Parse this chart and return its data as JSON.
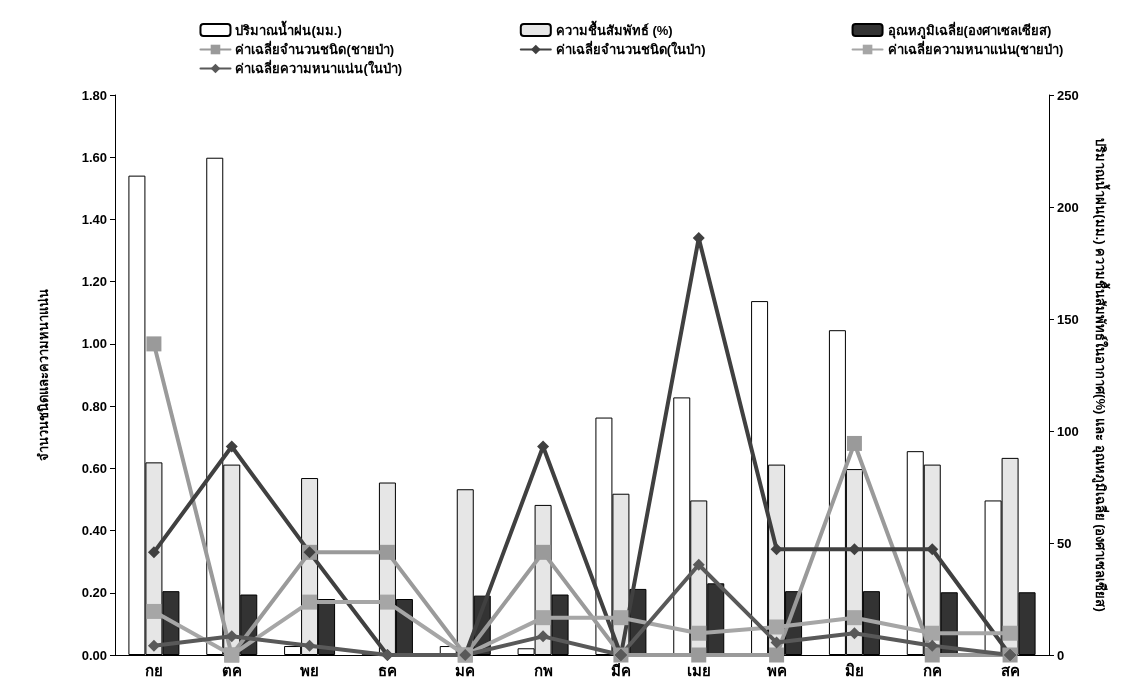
{
  "chart_data": {
    "type": "bar",
    "categories": [
      "กย",
      "ตค",
      "พย",
      "ธค",
      "มค",
      "กพ",
      "มีค",
      "เมย",
      "พค",
      "มิย",
      "กค",
      "สค"
    ],
    "ylabel": "จำนวนชนิดและความหนาแน่น",
    "y2label": "ปริมาณน้ำฝน(มม.) ความชื้นสัมพัทธ์ในอากาศ(%) และ อุณหภูมิเฉลี่ย (องศาเซลเซียส)",
    "ylim": [
      0,
      1.8
    ],
    "yticks": [
      {
        "value": 0,
        "label": "0.00"
      },
      {
        "value": 0.2,
        "label": "0.20"
      },
      {
        "value": 0.4,
        "label": "0.40"
      },
      {
        "value": 0.6,
        "label": "0.60"
      },
      {
        "value": 0.8,
        "label": "0.80"
      },
      {
        "value": 1,
        "label": "1.00"
      },
      {
        "value": 1.2,
        "label": "1.20"
      },
      {
        "value": 1.4,
        "label": "1.40"
      },
      {
        "value": 1.6,
        "label": "1.60"
      },
      {
        "value": 1.8,
        "label": "1.80"
      }
    ],
    "y2lim": [
      0,
      250
    ],
    "y2ticks": [
      0,
      50,
      100,
      150,
      200,
      250
    ],
    "grid": false,
    "legend": "top",
    "series": [
      {
        "name": "ปริมาณน้ำฝน(มม.)",
        "axis": "y2",
        "color": "#ffffff",
        "values": [
          214,
          222,
          4,
          0,
          4,
          3,
          106,
          115,
          158,
          145,
          91,
          69
        ]
      },
      {
        "name": "ความชื้นสัมพัทธ์ (%)",
        "axis": "y2",
        "color": "#e6e6e6",
        "values": [
          86,
          85,
          79,
          77,
          74,
          67,
          72,
          69,
          85,
          83,
          85,
          88
        ]
      },
      {
        "name": "อุณหภูมิเฉลี่ย(องศาเซลเซียส)",
        "axis": "y2",
        "color": "#333333",
        "values": [
          28.5,
          27,
          25,
          25,
          26.5,
          27,
          29.5,
          32,
          28.5,
          28.5,
          28,
          28
        ]
      },
      {
        "name": "ค่าเฉลี่ยจำนวนชนิด(ชายป่า)",
        "type": "line",
        "marker": "square",
        "color": "#9a9a9a",
        "values": [
          1.0,
          0.0,
          0.33,
          0.33,
          0.0,
          0.33,
          0.0,
          0.0,
          0.0,
          0.68,
          0.0,
          0.0
        ]
      },
      {
        "name": "ค่าเฉลี่ยจำนวนชนิด(ในป่า)",
        "type": "line",
        "marker": "diamond",
        "color": "#404040",
        "values": [
          0.33,
          0.67,
          0.33,
          0.0,
          0.0,
          0.67,
          0.0,
          1.34,
          0.34,
          0.34,
          0.34,
          0.0
        ]
      },
      {
        "name": "ค่าเฉลี่ยความหนาแน่น(ชายป่า)",
        "type": "line",
        "marker": "square",
        "color": "#a6a6a6",
        "values": [
          0.14,
          0.0,
          0.17,
          0.17,
          0.0,
          0.12,
          0.12,
          0.07,
          0.09,
          0.12,
          0.07,
          0.07
        ]
      },
      {
        "name": "ค่าเฉลี่ยความหนาแน่น(ในป่า)",
        "type": "line",
        "marker": "diamond",
        "color": "#595959",
        "values": [
          0.03,
          0.06,
          0.03,
          0.0,
          0.0,
          0.06,
          0.0,
          0.29,
          0.04,
          0.07,
          0.03,
          0.0
        ]
      }
    ]
  }
}
